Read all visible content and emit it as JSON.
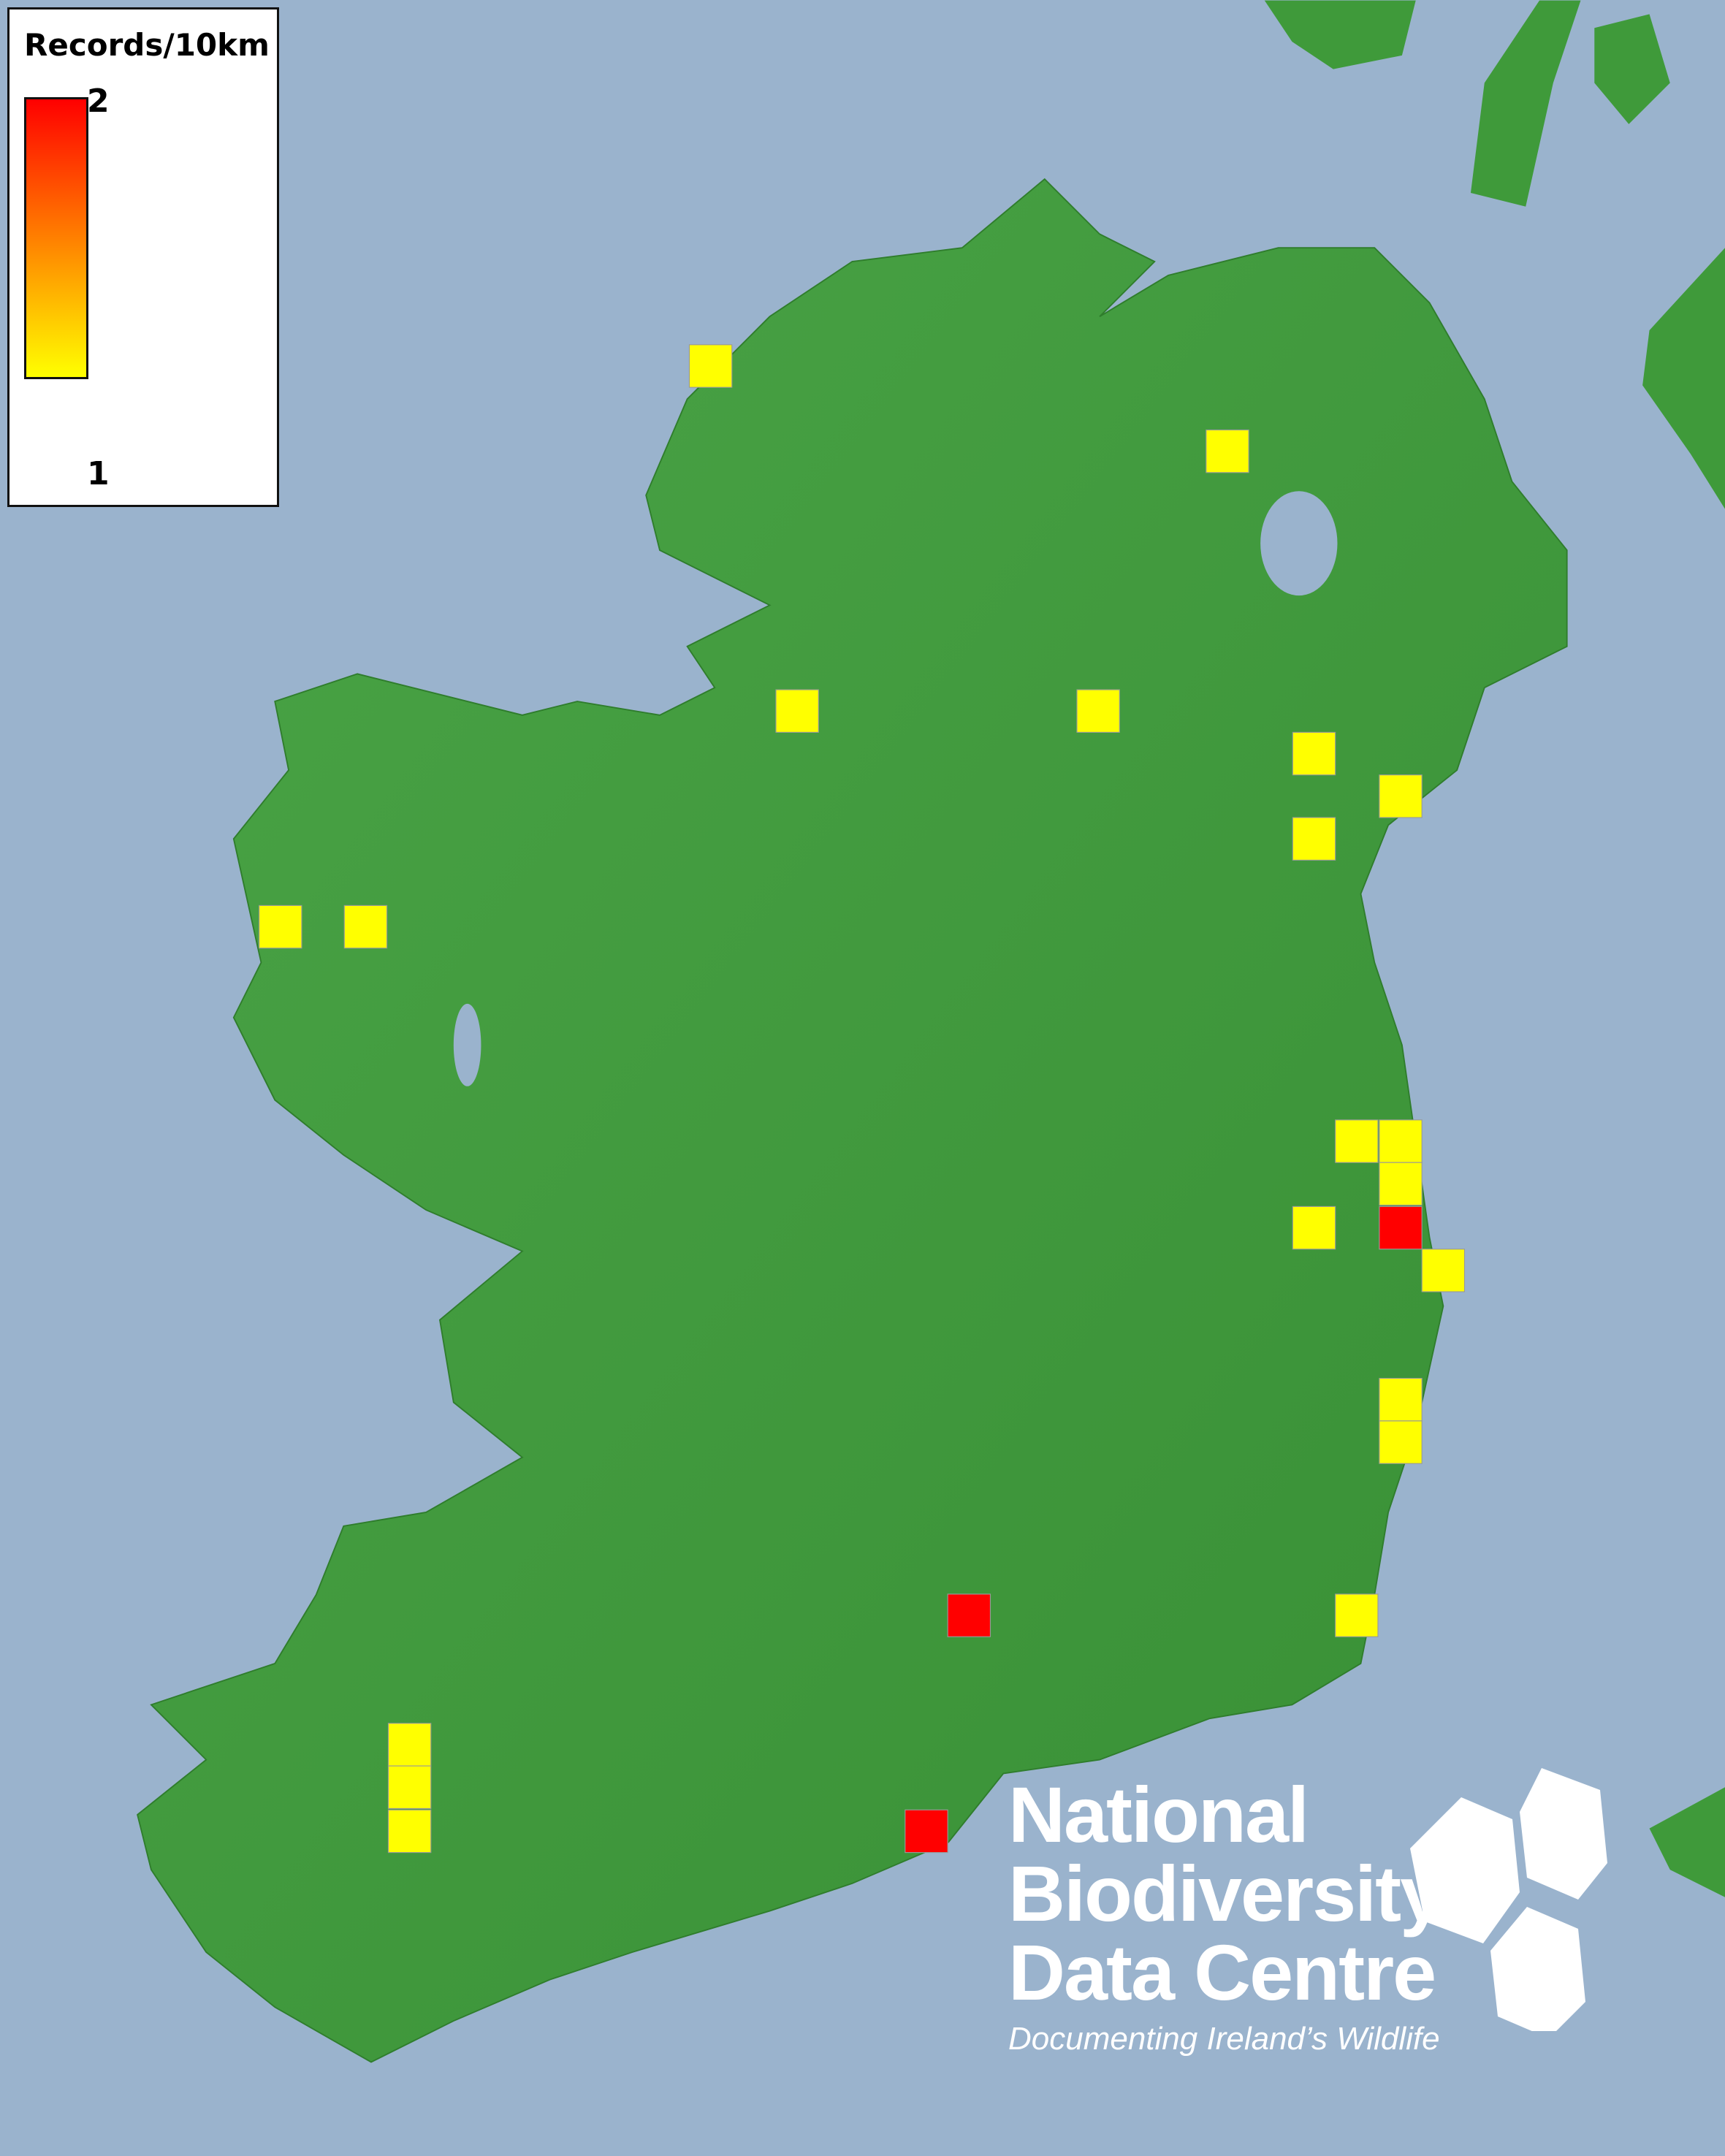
{
  "legend": {
    "title": "Records/10km",
    "max_label": "2",
    "min_label": "1",
    "color_max": "#ff0000",
    "color_min": "#ffff00"
  },
  "map": {
    "sea_color": "#9ab3cd",
    "land_color": "#3f9a3a"
  },
  "records": [
    1,
    1,
    1,
    1,
    1,
    1,
    1,
    1,
    1,
    1,
    1,
    1,
    1,
    1,
    1,
    1,
    1,
    1,
    1,
    1,
    2,
    2,
    2
  ],
  "logo": {
    "line1": "National",
    "line2": "Biodiversity",
    "line3": "Data Centre",
    "tagline": "Documenting Ireland’s Wildlife"
  }
}
